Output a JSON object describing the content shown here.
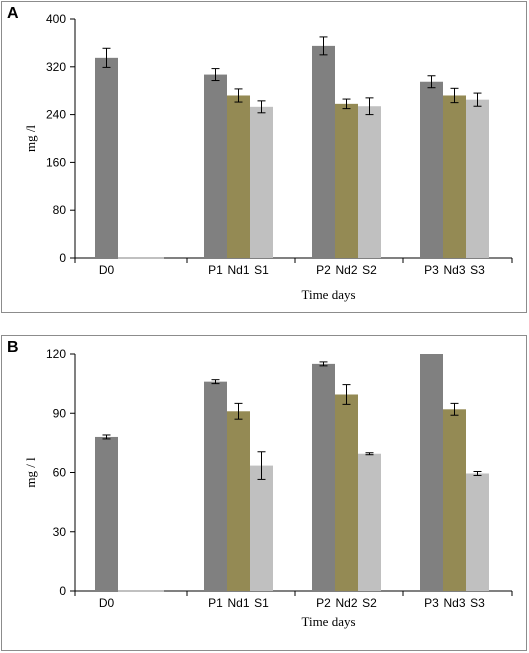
{
  "chart_data": [
    {
      "panel": "A",
      "type": "bar",
      "xlabel": "Time days",
      "ylabel": "mg /l",
      "ylim": [
        0,
        400
      ],
      "yticks": [
        0,
        80,
        160,
        240,
        320,
        400
      ],
      "groups": [
        {
          "bars": [
            {
              "label": "D0",
              "value": 335,
              "error": 16,
              "color": "#808080"
            },
            {
              "label": "",
              "value": 0,
              "error": 0,
              "color": "#808080"
            },
            {
              "label": "",
              "value": 0,
              "error": 0,
              "color": "#808080"
            }
          ]
        },
        {
          "bars": [
            {
              "label": "P1",
              "value": 307,
              "error": 10,
              "color": "#808080"
            },
            {
              "label": "Nd1",
              "value": 272,
              "error": 11,
              "color": "#948a54"
            },
            {
              "label": "S1",
              "value": 253,
              "error": 10,
              "color": "#c0c0c0"
            }
          ]
        },
        {
          "bars": [
            {
              "label": "P2",
              "value": 355,
              "error": 15,
              "color": "#808080"
            },
            {
              "label": "Nd2",
              "value": 258,
              "error": 8,
              "color": "#948a54"
            },
            {
              "label": "S2",
              "value": 254,
              "error": 14,
              "color": "#c0c0c0"
            }
          ]
        },
        {
          "bars": [
            {
              "label": "P3",
              "value": 295,
              "error": 10,
              "color": "#808080"
            },
            {
              "label": "Nd3",
              "value": 272,
              "error": 12,
              "color": "#948a54"
            },
            {
              "label": "S3",
              "value": 265,
              "error": 11,
              "color": "#c0c0c0"
            }
          ]
        }
      ]
    },
    {
      "panel": "B",
      "type": "bar",
      "xlabel": "Time days",
      "ylabel": "mg / l",
      "ylim": [
        0,
        120
      ],
      "yticks": [
        0,
        30,
        60,
        90,
        120
      ],
      "groups": [
        {
          "bars": [
            {
              "label": "D0",
              "value": 78,
              "error": 1,
              "color": "#808080"
            },
            {
              "label": "",
              "value": 0,
              "error": 0,
              "color": "#808080"
            },
            {
              "label": "",
              "value": 0,
              "error": 0,
              "color": "#808080"
            }
          ]
        },
        {
          "bars": [
            {
              "label": "P1",
              "value": 106,
              "error": 1,
              "color": "#808080"
            },
            {
              "label": "Nd1",
              "value": 91,
              "error": 4,
              "color": "#948a54"
            },
            {
              "label": "S1",
              "value": 63.5,
              "error": 7,
              "color": "#c0c0c0"
            }
          ]
        },
        {
          "bars": [
            {
              "label": "P2",
              "value": 115,
              "error": 1,
              "color": "#808080"
            },
            {
              "label": "Nd2",
              "value": 99.5,
              "error": 5,
              "color": "#948a54"
            },
            {
              "label": "S2",
              "value": 69.5,
              "error": 0.5,
              "color": "#c0c0c0"
            }
          ]
        },
        {
          "bars": [
            {
              "label": "P3",
              "value": 120,
              "error": 0,
              "color": "#808080"
            },
            {
              "label": "Nd3",
              "value": 92,
              "error": 3,
              "color": "#948a54"
            },
            {
              "label": "S3",
              "value": 59.5,
              "error": 1,
              "color": "#c0c0c0"
            }
          ]
        }
      ]
    }
  ]
}
